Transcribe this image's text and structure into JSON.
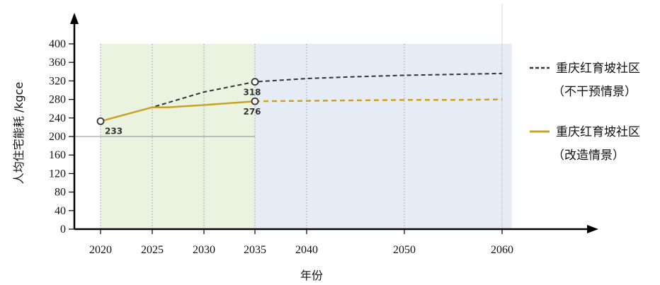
{
  "chart_data": {
    "type": "line",
    "title": "",
    "xlabel": "年份",
    "ylabel": "人均住宅能耗 /kgce",
    "x_ticks": [
      2020,
      2025,
      2030,
      2035,
      2040,
      2050,
      2060
    ],
    "y_ticks": [
      0,
      40,
      80,
      120,
      160,
      200,
      240,
      280,
      320,
      360,
      400
    ],
    "xlim": [
      2020,
      2060
    ],
    "ylim": [
      0,
      400
    ],
    "background_bands": [
      {
        "from": 2020,
        "to": 2035,
        "color": "#e9f3df"
      },
      {
        "from": 2035,
        "to": 2061,
        "color": "#e6ecf6"
      }
    ],
    "reference_line": {
      "y": 200
    },
    "series": [
      {
        "name": "重庆红育坡社区\n（不干预情景）",
        "legend_lines": [
          "重庆红育坡社区",
          "（不干预情景）"
        ],
        "color": "#333333",
        "style": "dashed",
        "x": [
          2020,
          2025,
          2030,
          2035,
          2040,
          2045,
          2050,
          2055,
          2060
        ],
        "y": [
          233,
          263,
          296,
          318,
          325,
          329,
          332,
          334,
          336
        ]
      },
      {
        "name": "重庆红育坡社区\n（改造情景）",
        "legend_lines": [
          "重庆红育坡社区",
          "（改造情景）"
        ],
        "color": "#c9a227",
        "style": "solid_then_dashed",
        "x": [
          2020,
          2025,
          2026.5,
          2030,
          2035,
          2040,
          2045,
          2050,
          2055,
          2060
        ],
        "y": [
          233,
          263,
          263,
          268,
          276,
          277,
          278,
          279,
          279,
          280
        ]
      }
    ],
    "split_x": 2035,
    "annotations": [
      {
        "x": 2020,
        "y": 233,
        "text": "233",
        "series": 1
      },
      {
        "x": 2035,
        "y": 318,
        "text": "318",
        "series": 0
      },
      {
        "x": 2035,
        "y": 276,
        "text": "276",
        "series": 1
      }
    ],
    "legend_position": "right",
    "grid": true
  }
}
